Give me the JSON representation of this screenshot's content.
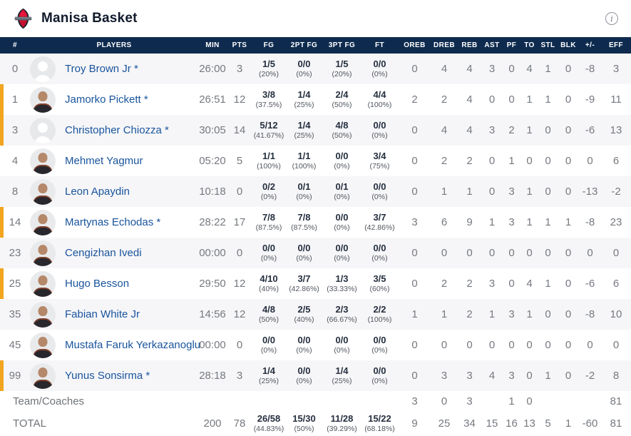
{
  "header": {
    "team_name": "Manisa Basket",
    "info_icon": "i"
  },
  "colors": {
    "header_navy": "#0E2B4F",
    "player_name_blue": "#19549C",
    "on_court_orange": "#F2A51F",
    "alt_row_gray": "#F6F6F8",
    "stat_gray": "#75797F"
  },
  "table": {
    "columns": [
      "#",
      "PLAYERS",
      "MIN",
      "PTS",
      "FG",
      "2PT FG",
      "3PT FG",
      "FT",
      "OREB",
      "DREB",
      "REB",
      "AST",
      "PF",
      "TO",
      "STL",
      "BLK",
      "+/-",
      "EFF"
    ],
    "players": [
      {
        "num": "0",
        "name": "Troy Brown Jr *",
        "avatar": "placeholder",
        "on_court": false,
        "min": "26:00",
        "pts": "3",
        "shooting": [
          [
            "1/5",
            "(20%)"
          ],
          [
            "0/0",
            "(0%)"
          ],
          [
            "1/5",
            "(20%)"
          ],
          [
            "0/0",
            "(0%)"
          ]
        ],
        "stats": [
          "0",
          "4",
          "4",
          "3",
          "0",
          "4",
          "1",
          "0",
          "-8",
          "3"
        ]
      },
      {
        "num": "1",
        "name": "Jamorko Pickett *",
        "avatar": "photo",
        "on_court": true,
        "min": "26:51",
        "pts": "12",
        "shooting": [
          [
            "3/8",
            "(37.5%)"
          ],
          [
            "1/4",
            "(25%)"
          ],
          [
            "2/4",
            "(50%)"
          ],
          [
            "4/4",
            "(100%)"
          ]
        ],
        "stats": [
          "2",
          "2",
          "4",
          "0",
          "0",
          "1",
          "1",
          "0",
          "-9",
          "11"
        ]
      },
      {
        "num": "3",
        "name": "Christopher Chiozza *",
        "avatar": "placeholder",
        "on_court": true,
        "min": "30:05",
        "pts": "14",
        "shooting": [
          [
            "5/12",
            "(41.67%)"
          ],
          [
            "1/4",
            "(25%)"
          ],
          [
            "4/8",
            "(50%)"
          ],
          [
            "0/0",
            "(0%)"
          ]
        ],
        "stats": [
          "0",
          "4",
          "4",
          "3",
          "2",
          "1",
          "0",
          "0",
          "-6",
          "13"
        ]
      },
      {
        "num": "4",
        "name": "Mehmet Yagmur",
        "avatar": "photo",
        "on_court": false,
        "min": "05:20",
        "pts": "5",
        "shooting": [
          [
            "1/1",
            "(100%)"
          ],
          [
            "1/1",
            "(100%)"
          ],
          [
            "0/0",
            "(0%)"
          ],
          [
            "3/4",
            "(75%)"
          ]
        ],
        "stats": [
          "0",
          "2",
          "2",
          "0",
          "1",
          "0",
          "0",
          "0",
          "0",
          "6"
        ]
      },
      {
        "num": "8",
        "name": "Leon Apaydin",
        "avatar": "photo",
        "on_court": false,
        "min": "10:18",
        "pts": "0",
        "shooting": [
          [
            "0/2",
            "(0%)"
          ],
          [
            "0/1",
            "(0%)"
          ],
          [
            "0/1",
            "(0%)"
          ],
          [
            "0/0",
            "(0%)"
          ]
        ],
        "stats": [
          "0",
          "1",
          "1",
          "0",
          "3",
          "1",
          "0",
          "0",
          "-13",
          "-2"
        ]
      },
      {
        "num": "14",
        "name": "Martynas Echodas *",
        "avatar": "photo",
        "on_court": true,
        "min": "28:22",
        "pts": "17",
        "shooting": [
          [
            "7/8",
            "(87.5%)"
          ],
          [
            "7/8",
            "(87.5%)"
          ],
          [
            "0/0",
            "(0%)"
          ],
          [
            "3/7",
            "(42.86%)"
          ]
        ],
        "stats": [
          "3",
          "6",
          "9",
          "1",
          "3",
          "1",
          "1",
          "1",
          "-8",
          "23"
        ]
      },
      {
        "num": "23",
        "name": "Cengizhan Ivedi",
        "avatar": "photo",
        "on_court": false,
        "min": "00:00",
        "pts": "0",
        "shooting": [
          [
            "0/0",
            "(0%)"
          ],
          [
            "0/0",
            "(0%)"
          ],
          [
            "0/0",
            "(0%)"
          ],
          [
            "0/0",
            "(0%)"
          ]
        ],
        "stats": [
          "0",
          "0",
          "0",
          "0",
          "0",
          "0",
          "0",
          "0",
          "0",
          "0"
        ]
      },
      {
        "num": "25",
        "name": "Hugo Besson",
        "avatar": "photo",
        "on_court": true,
        "min": "29:50",
        "pts": "12",
        "shooting": [
          [
            "4/10",
            "(40%)"
          ],
          [
            "3/7",
            "(42.86%)"
          ],
          [
            "1/3",
            "(33.33%)"
          ],
          [
            "3/5",
            "(60%)"
          ]
        ],
        "stats": [
          "0",
          "2",
          "2",
          "3",
          "0",
          "4",
          "1",
          "0",
          "-6",
          "6"
        ]
      },
      {
        "num": "35",
        "name": "Fabian White Jr",
        "avatar": "photo",
        "on_court": false,
        "min": "14:56",
        "pts": "12",
        "shooting": [
          [
            "4/8",
            "(50%)"
          ],
          [
            "2/5",
            "(40%)"
          ],
          [
            "2/3",
            "(66.67%)"
          ],
          [
            "2/2",
            "(100%)"
          ]
        ],
        "stats": [
          "1",
          "1",
          "2",
          "1",
          "3",
          "1",
          "0",
          "0",
          "-8",
          "10"
        ]
      },
      {
        "num": "45",
        "name": "Mustafa Faruk Yerkazanoglu",
        "avatar": "photo",
        "on_court": false,
        "min": "00:00",
        "pts": "0",
        "shooting": [
          [
            "0/0",
            "(0%)"
          ],
          [
            "0/0",
            "(0%)"
          ],
          [
            "0/0",
            "(0%)"
          ],
          [
            "0/0",
            "(0%)"
          ]
        ],
        "stats": [
          "0",
          "0",
          "0",
          "0",
          "0",
          "0",
          "0",
          "0",
          "0",
          "0"
        ]
      },
      {
        "num": "99",
        "name": "Yunus Sonsirma *",
        "avatar": "photo",
        "on_court": true,
        "min": "28:18",
        "pts": "3",
        "shooting": [
          [
            "1/4",
            "(25%)"
          ],
          [
            "0/0",
            "(0%)"
          ],
          [
            "1/4",
            "(25%)"
          ],
          [
            "0/0",
            "(0%)"
          ]
        ],
        "stats": [
          "0",
          "3",
          "3",
          "4",
          "3",
          "0",
          "1",
          "0",
          "-2",
          "8"
        ]
      }
    ],
    "team_row": {
      "label": "Team/Coaches",
      "stats": [
        "3",
        "0",
        "3",
        "",
        "1",
        "0",
        "",
        "",
        "",
        "81"
      ]
    },
    "total_row": {
      "label": "TOTAL",
      "min": "200",
      "pts": "78",
      "shooting": [
        [
          "26/58",
          "(44.83%)"
        ],
        [
          "15/30",
          "(50%)"
        ],
        [
          "11/28",
          "(39.29%)"
        ],
        [
          "15/22",
          "(68.18%)"
        ]
      ],
      "stats": [
        "9",
        "25",
        "34",
        "15",
        "16",
        "13",
        "5",
        "1",
        "-60",
        "81"
      ]
    }
  }
}
